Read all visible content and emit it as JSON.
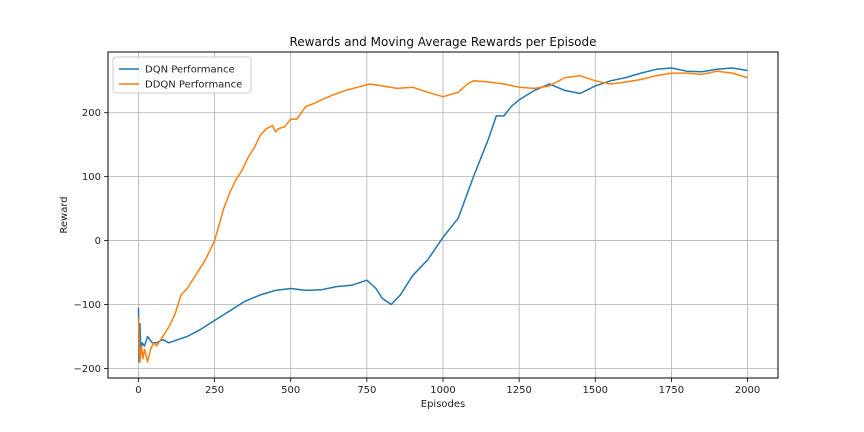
{
  "chart_data": {
    "type": "line",
    "title": "Rewards and Moving Average Rewards per Episode",
    "xlabel": "Episodes",
    "ylabel": "Reward",
    "xlim": [
      -100,
      2100
    ],
    "ylim": [
      -215,
      295
    ],
    "xticks": [
      0,
      250,
      500,
      750,
      1000,
      1250,
      1500,
      1750,
      2000
    ],
    "yticks": [
      -200,
      -100,
      0,
      100,
      200
    ],
    "grid": true,
    "legend_position": "top-left",
    "series": [
      {
        "name": "DQN Performance",
        "color": "#1f77b4",
        "x": [
          0,
          2,
          5,
          8,
          12,
          20,
          30,
          45,
          60,
          80,
          100,
          130,
          160,
          200,
          250,
          300,
          350,
          400,
          450,
          500,
          550,
          600,
          650,
          700,
          750,
          780,
          800,
          830,
          860,
          900,
          950,
          1000,
          1050,
          1100,
          1150,
          1175,
          1200,
          1225,
          1250,
          1300,
          1350,
          1400,
          1450,
          1500,
          1550,
          1600,
          1650,
          1700,
          1750,
          1800,
          1850,
          1900,
          1950,
          2000
        ],
        "y": [
          -105,
          -190,
          -130,
          -180,
          -160,
          -165,
          -150,
          -160,
          -160,
          -155,
          -160,
          -155,
          -150,
          -140,
          -125,
          -110,
          -95,
          -85,
          -78,
          -75,
          -78,
          -77,
          -72,
          -70,
          -62,
          -75,
          -90,
          -100,
          -85,
          -55,
          -30,
          5,
          35,
          100,
          160,
          195,
          195,
          210,
          220,
          235,
          245,
          235,
          230,
          242,
          250,
          255,
          262,
          268,
          270,
          265,
          264,
          268,
          270,
          266
        ]
      },
      {
        "name": "DDQN Performance",
        "color": "#ff7f0e",
        "x": [
          0,
          5,
          10,
          15,
          20,
          25,
          30,
          40,
          50,
          60,
          80,
          100,
          120,
          140,
          160,
          180,
          200,
          220,
          250,
          280,
          300,
          320,
          340,
          360,
          380,
          400,
          420,
          440,
          450,
          460,
          480,
          500,
          520,
          550,
          580,
          600,
          640,
          680,
          720,
          760,
          800,
          850,
          900,
          950,
          1000,
          1050,
          1080,
          1100,
          1150,
          1200,
          1250,
          1300,
          1350,
          1400,
          1450,
          1500,
          1550,
          1600,
          1650,
          1700,
          1750,
          1800,
          1850,
          1900,
          1950,
          2000
        ],
        "y": [
          -120,
          -190,
          -165,
          -185,
          -170,
          -180,
          -190,
          -170,
          -160,
          -165,
          -150,
          -135,
          -115,
          -85,
          -75,
          -60,
          -45,
          -30,
          0,
          50,
          75,
          95,
          110,
          130,
          145,
          165,
          175,
          180,
          170,
          175,
          178,
          190,
          190,
          210,
          215,
          220,
          228,
          235,
          240,
          245,
          242,
          238,
          240,
          232,
          225,
          232,
          245,
          250,
          248,
          245,
          240,
          238,
          242,
          255,
          258,
          250,
          245,
          248,
          252,
          258,
          262,
          262,
          260,
          265,
          262,
          255
        ]
      }
    ]
  }
}
